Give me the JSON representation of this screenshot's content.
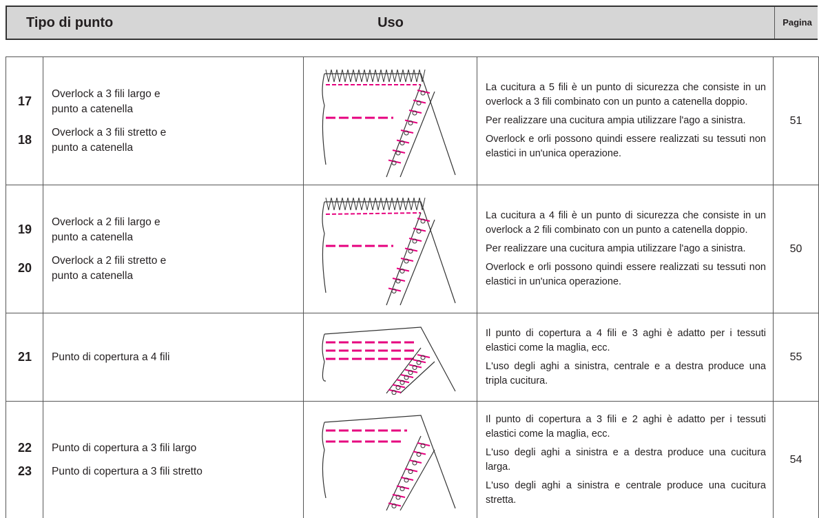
{
  "header": {
    "stitch_type": "Tipo di punto",
    "use": "Uso",
    "page": "Pagina"
  },
  "rows": [
    {
      "items": [
        {
          "number": "17",
          "lines": [
            "Overlock a 3 fili largo e",
            "punto a catenella"
          ]
        },
        {
          "number": "18",
          "lines": [
            "Overlock a 3 fili stretto e",
            "punto a catenella"
          ]
        }
      ],
      "use": [
        "La cucitura a 5 fili è un punto di sicurezza che consiste in un overlock a 3 fili combinato con un punto a catenella doppio.",
        "Per realizzare una cucitura ampia utilizzare l'ago a sinistra.",
        "Overlock e orli possono quindi essere realizzati su tessuti non elastici in un'unica operazione."
      ],
      "page": "51"
    },
    {
      "items": [
        {
          "number": "19",
          "lines": [
            "Overlock a 2 fili largo e",
            "punto a catenella"
          ]
        },
        {
          "number": "20",
          "lines": [
            "Overlock a 2 fili stretto e",
            "punto a catenella"
          ]
        }
      ],
      "use": [
        "La cucitura a 4 fili è un punto di sicurezza che consiste in un overlock a 2 fili combinato con un punto a catenella doppio.",
        "Per realizzare una cucitura ampia utilizzare l'ago a sinistra.",
        "Overlock e orli possono quindi essere realizzati su tessuti non elastici in un'unica operazione."
      ],
      "page": "50"
    },
    {
      "items": [
        {
          "number": "21",
          "lines": [
            "Punto di copertura a 4 fili"
          ]
        }
      ],
      "use": [
        "Il punto di copertura a 4 fili e 3 aghi è adatto per i tessuti elastici come la maglia, ecc.",
        "L'uso degli aghi a sinistra, centrale e a destra produce una tripla cucitura."
      ],
      "page": "55"
    },
    {
      "items": [
        {
          "number": "22",
          "lines": [
            "Punto di copertura a 3 fili largo"
          ]
        },
        {
          "number": "23",
          "lines": [
            "Punto di copertura a 3 fili stretto"
          ]
        }
      ],
      "use": [
        "Il punto di copertura a 3 fili e 2 aghi è adatto per i tessuti elastici come la maglia, ecc.",
        "L'uso degli aghi a sinistra e a destra produce una cucitura larga.",
        "L'uso degli aghi a sinistra e centrale produce una cucitura stretta."
      ],
      "page": "54"
    }
  ]
}
